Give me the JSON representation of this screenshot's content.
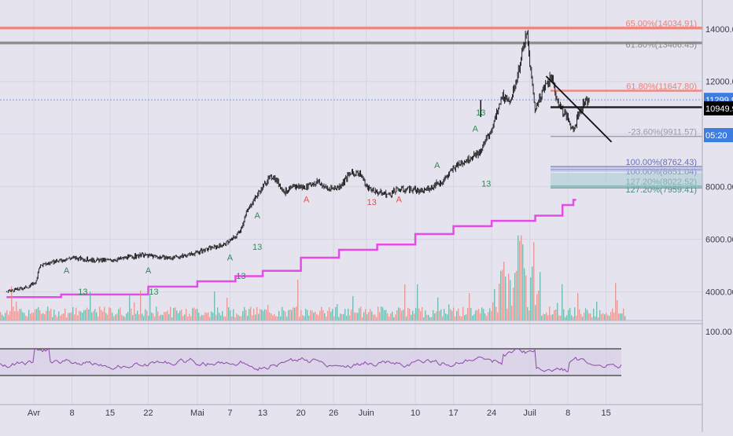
{
  "chart_data": {
    "type": "candlestick",
    "title": "",
    "price_scale": {
      "ylim": [
        3000,
        15000
      ],
      "ticks": [
        4000,
        6000,
        8000,
        10000,
        12000,
        14000
      ]
    },
    "x_ticks": [
      {
        "label": "Avr",
        "day": 0
      },
      {
        "label": "8",
        "day": 7
      },
      {
        "label": "15",
        "day": 14
      },
      {
        "label": "22",
        "day": 21
      },
      {
        "label": "Mai",
        "day": 30
      },
      {
        "label": "7",
        "day": 36
      },
      {
        "label": "13",
        "day": 42
      },
      {
        "label": "20",
        "day": 49
      },
      {
        "label": "26",
        "day": 55
      },
      {
        "label": "Juin",
        "day": 61
      },
      {
        "label": "10",
        "day": 70
      },
      {
        "label": "17",
        "day": 77
      },
      {
        "label": "24",
        "day": 84
      },
      {
        "label": "Juil",
        "day": 91
      },
      {
        "label": "8",
        "day": 98
      },
      {
        "label": "15",
        "day": 105
      }
    ],
    "price_path": [
      [
        -5,
        4000
      ],
      [
        -3,
        4100
      ],
      [
        -1,
        4200
      ],
      [
        0.5,
        4400
      ],
      [
        1,
        5000
      ],
      [
        3,
        5100
      ],
      [
        5,
        5200
      ],
      [
        7,
        5300
      ],
      [
        9,
        5250
      ],
      [
        11,
        5200
      ],
      [
        14,
        5200
      ],
      [
        17,
        5300
      ],
      [
        20,
        5400
      ],
      [
        22,
        5350
      ],
      [
        24,
        5300
      ],
      [
        26,
        5300
      ],
      [
        28,
        5400
      ],
      [
        30,
        5500
      ],
      [
        33,
        5700
      ],
      [
        35,
        5800
      ],
      [
        37,
        6100
      ],
      [
        38,
        6400
      ],
      [
        39,
        7000
      ],
      [
        40,
        7400
      ],
      [
        41,
        7700
      ],
      [
        42,
        8000
      ],
      [
        43,
        8300
      ],
      [
        44,
        8400
      ],
      [
        45,
        8100
      ],
      [
        46,
        7800
      ],
      [
        47,
        7900
      ],
      [
        48,
        8000
      ],
      [
        50,
        8000
      ],
      [
        52,
        8200
      ],
      [
        54,
        7900
      ],
      [
        56,
        8000
      ],
      [
        58,
        8500
      ],
      [
        60,
        8500
      ],
      [
        61,
        8000
      ],
      [
        63,
        7800
      ],
      [
        65,
        7700
      ],
      [
        67,
        7900
      ],
      [
        69,
        7900
      ],
      [
        71,
        7800
      ],
      [
        73,
        8000
      ],
      [
        75,
        8200
      ],
      [
        77,
        8700
      ],
      [
        79,
        9000
      ],
      [
        80,
        9100
      ],
      [
        81,
        9200
      ],
      [
        82,
        9300
      ],
      [
        83,
        9800
      ],
      [
        84,
        10200
      ],
      [
        85,
        10800
      ],
      [
        86,
        11500
      ],
      [
        87,
        11200
      ],
      [
        88,
        11600
      ],
      [
        89,
        12500
      ],
      [
        90,
        13500
      ],
      [
        90.5,
        13800
      ],
      [
        91,
        12700
      ],
      [
        91.5,
        11800
      ],
      [
        92,
        10900
      ],
      [
        93,
        11500
      ],
      [
        94,
        11900
      ],
      [
        95,
        12200
      ],
      [
        96,
        11300
      ],
      [
        97,
        10900
      ],
      [
        98,
        10600
      ],
      [
        99,
        10100
      ],
      [
        100,
        10800
      ],
      [
        101,
        11200
      ],
      [
        102,
        11300
      ]
    ],
    "horizontal_levels": [
      {
        "label": "65.00%(14034.91)",
        "price": 14034.91,
        "color": "#ef8078"
      },
      {
        "label": "61.80%(13466.45)",
        "price": 13466.45,
        "color": "#888888"
      },
      {
        "label": "61.80%(11647.80)",
        "price": 11647.8,
        "color": "#ef8078"
      },
      {
        "label": "11299.98",
        "price": 11299.98,
        "color": "#6a9ae8"
      },
      {
        "label": "-23.60%(9911.57)",
        "price": 9911.57,
        "color": "#9a9aa8"
      },
      {
        "label": "100.00%(8651.04)",
        "price": 8651.04,
        "color": "#6a6fb8"
      },
      {
        "label": "100.00%(8762.43)",
        "price": 8762.43,
        "color": "#6a6fb8"
      },
      {
        "label": "127.20%(7959.41)",
        "price": 7959.41,
        "color": "#4a8f86"
      },
      {
        "label": "127.20%(8022.52)",
        "price": 8022.52,
        "color": "#4a8f86"
      }
    ],
    "price_labels": [
      {
        "value": "11299.98",
        "bg": "#3d7de0",
        "color": "#ffffff"
      },
      {
        "value": "05:20",
        "bg": "#3d7de0",
        "color": "#ffffff"
      },
      {
        "value": "10949.91",
        "bg": "#000000",
        "color": "#ffffff"
      }
    ],
    "trendline": {
      "from": [
        94,
        12200
      ],
      "to": [
        106,
        9700
      ]
    },
    "support_line": {
      "from": [
        82,
        10900
      ],
      "to": [
        106,
        10900
      ]
    },
    "magenta_step_line": [
      [
        -5,
        3800
      ],
      [
        5,
        3900
      ],
      [
        21,
        4200
      ],
      [
        30,
        4400
      ],
      [
        37,
        4600
      ],
      [
        42,
        4800
      ],
      [
        49,
        5300
      ],
      [
        56,
        5600
      ],
      [
        63,
        5800
      ],
      [
        70,
        6200
      ],
      [
        77,
        6500
      ],
      [
        84,
        6700
      ],
      [
        92,
        6900
      ],
      [
        97,
        7300
      ],
      [
        99,
        7500
      ]
    ],
    "markers": [
      {
        "text": "A",
        "day": 6,
        "price": 4700,
        "color": "#2e8b57"
      },
      {
        "text": "13",
        "day": 9,
        "price": 3900,
        "color": "#2e8b57"
      },
      {
        "text": "A",
        "day": 21,
        "price": 4700,
        "color": "#2e8b57"
      },
      {
        "text": "13",
        "day": 22,
        "price": 3900,
        "color": "#2e8b57"
      },
      {
        "text": "A",
        "day": 36,
        "price": 5200,
        "color": "#2e8b57"
      },
      {
        "text": "13",
        "day": 38,
        "price": 4500,
        "color": "#2e8b57"
      },
      {
        "text": "A",
        "day": 41,
        "price": 6800,
        "color": "#2e8b57"
      },
      {
        "text": "13",
        "day": 41,
        "price": 5600,
        "color": "#2e8b57"
      },
      {
        "text": "A",
        "day": 50,
        "price": 7400,
        "color": "#e05050"
      },
      {
        "text": "13",
        "day": 62,
        "price": 7300,
        "color": "#e05050"
      },
      {
        "text": "A",
        "day": 67,
        "price": 7400,
        "color": "#e05050"
      },
      {
        "text": "A",
        "day": 74,
        "price": 8700,
        "color": "#2e8b57"
      },
      {
        "text": "A",
        "day": 81,
        "price": 10100,
        "color": "#2e8b57"
      },
      {
        "text": "13",
        "day": 82,
        "price": 10700,
        "color": "#2e8b57"
      },
      {
        "text": "13",
        "day": 83,
        "price": 8000,
        "color": "#2e8b57"
      }
    ],
    "rsi_panel": {
      "label": "100.00",
      "upper": 70,
      "lower": 30
    },
    "xlabel": "",
    "ylabel": ""
  }
}
